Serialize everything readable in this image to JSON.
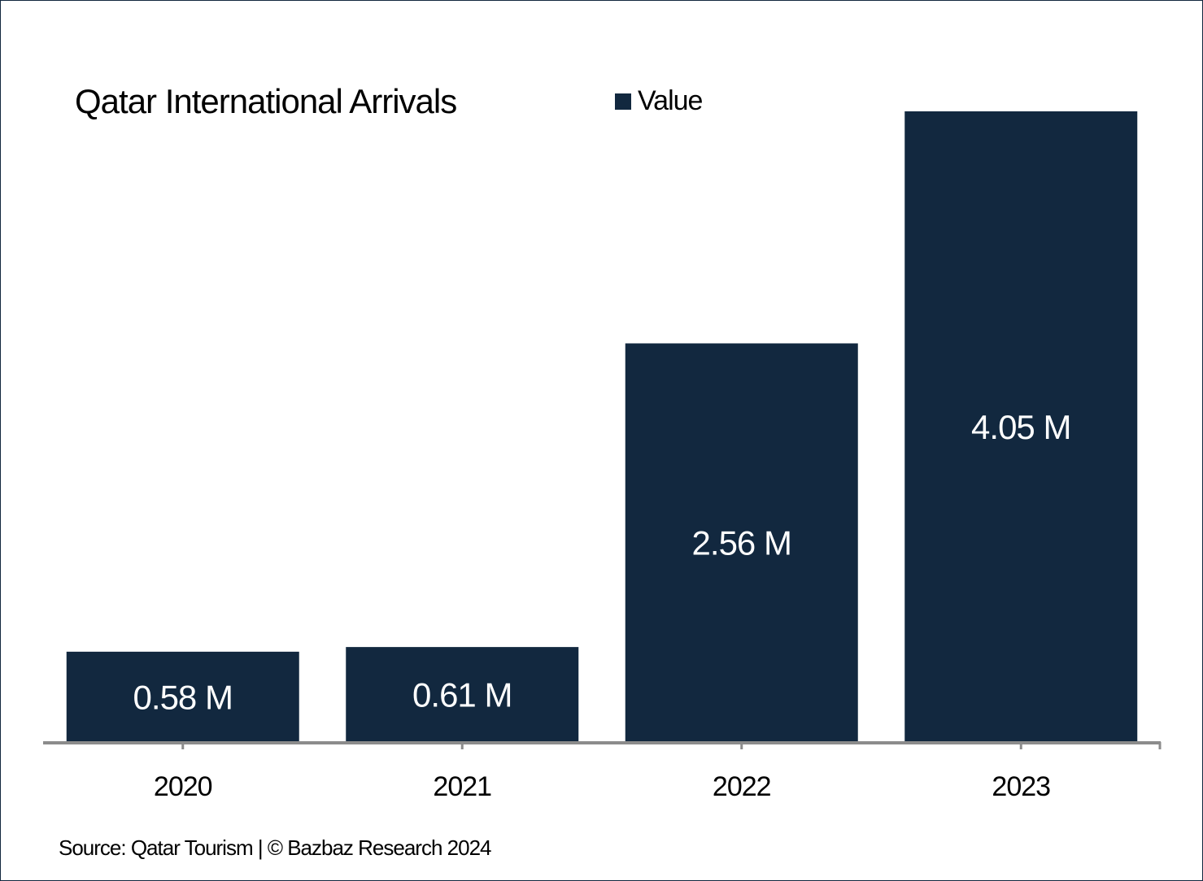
{
  "chart_data": {
    "type": "bar",
    "title": "Qatar International Arrivals",
    "categories": [
      "2020",
      "2021",
      "2022",
      "2023"
    ],
    "series": [
      {
        "name": "Value",
        "values": [
          0.58,
          0.61,
          2.56,
          4.05
        ],
        "color": "#12283f"
      }
    ],
    "data_labels": [
      "0.58 M",
      "0.61 M",
      "2.56 M",
      "4.05 M"
    ],
    "unit": "M",
    "xlabel": "",
    "ylabel": "",
    "ylim": [
      0,
      4.05
    ],
    "grid": false,
    "legend": {
      "position": "top-center",
      "entries": [
        "Value"
      ]
    }
  },
  "source": "Source: Qatar Tourism | © Bazbaz Research 2024",
  "colors": {
    "bar": "#12283f",
    "axis": "#8c8c8c",
    "border": "#12283f"
  }
}
